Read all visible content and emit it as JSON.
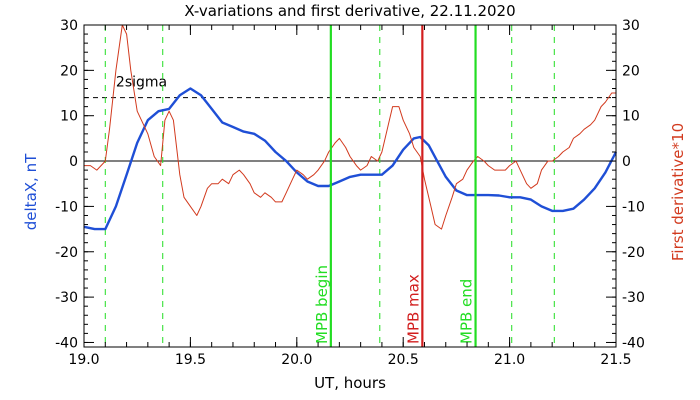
{
  "chart_data": {
    "type": "line",
    "title": "X-variations and first derivative, 22.11.2020",
    "xlabel": "UT, hours",
    "ylabel_left": "deltaX, nT",
    "ylabel_right": "First derivative*10",
    "xlim": [
      19.0,
      21.5
    ],
    "ylim": [
      -41,
      30
    ],
    "x_ticks": [
      19.0,
      19.5,
      20.0,
      20.5,
      21.0,
      21.5
    ],
    "x_tick_labels": [
      "19.0",
      "19.5",
      "20.0",
      "20.5",
      "21.0",
      "21.5"
    ],
    "y_ticks": [
      30,
      20,
      10,
      0,
      -10,
      -20,
      -30,
      -40
    ],
    "y_tick_labels": [
      "30",
      "20",
      "10",
      "0",
      "-10",
      "-20",
      "-30",
      "-40"
    ],
    "colors": {
      "deltaX": "#1f4fd6",
      "derivative": "#d23a1e",
      "mpb": "#22dd22",
      "mpb_max": "#d21e1e",
      "axes": "#000000"
    },
    "series": [
      {
        "key": "deltaX",
        "axis": "left",
        "x": [
          19.0,
          19.05,
          19.1,
          19.15,
          19.2,
          19.25,
          19.3,
          19.35,
          19.4,
          19.45,
          19.5,
          19.55,
          19.6,
          19.65,
          19.7,
          19.75,
          19.8,
          19.85,
          19.9,
          19.95,
          20.0,
          20.05,
          20.1,
          20.15,
          20.2,
          20.25,
          20.3,
          20.35,
          20.4,
          20.45,
          20.5,
          20.55,
          20.58,
          20.62,
          20.66,
          20.7,
          20.75,
          20.8,
          20.85,
          20.9,
          20.95,
          21.0,
          21.05,
          21.1,
          21.15,
          21.2,
          21.25,
          21.3,
          21.35,
          21.4,
          21.45,
          21.5
        ],
        "y": [
          -14.5,
          -15.0,
          -15.0,
          -10.0,
          -3.0,
          4.0,
          9.0,
          11.0,
          11.5,
          14.5,
          16.0,
          14.5,
          11.5,
          8.5,
          7.5,
          6.5,
          6.0,
          4.5,
          2.0,
          0.0,
          -2.5,
          -4.5,
          -5.5,
          -5.5,
          -4.5,
          -3.5,
          -3.0,
          -3.0,
          -3.0,
          -1.0,
          2.5,
          5.0,
          5.3,
          3.5,
          0.0,
          -3.5,
          -6.5,
          -7.5,
          -7.5,
          -7.5,
          -7.6,
          -8.0,
          -8.0,
          -8.5,
          -10.0,
          -11.0,
          -11.0,
          -10.5,
          -8.5,
          -6.0,
          -2.5,
          2.0
        ]
      },
      {
        "key": "derivative",
        "axis": "right",
        "x": [
          19.0,
          19.03,
          19.06,
          19.1,
          19.12,
          19.15,
          19.18,
          19.2,
          19.22,
          19.25,
          19.28,
          19.3,
          19.33,
          19.36,
          19.38,
          19.4,
          19.42,
          19.45,
          19.47,
          19.5,
          19.53,
          19.55,
          19.58,
          19.6,
          19.63,
          19.65,
          19.68,
          19.7,
          19.73,
          19.75,
          19.78,
          19.8,
          19.83,
          19.85,
          19.88,
          19.9,
          19.93,
          19.95,
          19.98,
          20.0,
          20.03,
          20.05,
          20.08,
          20.1,
          20.13,
          20.15,
          20.18,
          20.2,
          20.23,
          20.25,
          20.28,
          20.3,
          20.33,
          20.35,
          20.38,
          20.4,
          20.43,
          20.45,
          20.48,
          20.5,
          20.53,
          20.55,
          20.58,
          20.6,
          20.63,
          20.65,
          20.68,
          20.7,
          20.73,
          20.75,
          20.78,
          20.8,
          20.83,
          20.85,
          20.88,
          20.9,
          20.93,
          20.95,
          20.98,
          21.0,
          21.03,
          21.05,
          21.08,
          21.1,
          21.13,
          21.15,
          21.18,
          21.2,
          21.23,
          21.25,
          21.28,
          21.3,
          21.33,
          21.35,
          21.38,
          21.4,
          21.43,
          21.45,
          21.48,
          21.5
        ],
        "y": [
          -1.0,
          -1.0,
          -2.0,
          0.0,
          7.0,
          20.0,
          30.0,
          28.0,
          20.0,
          11.0,
          8.0,
          6.0,
          1.0,
          -1.0,
          9.0,
          11.0,
          9.0,
          -3.0,
          -8.0,
          -10.0,
          -12.0,
          -10.0,
          -6.0,
          -5.0,
          -5.0,
          -4.0,
          -5.0,
          -3.0,
          -2.0,
          -3.0,
          -5.0,
          -7.0,
          -8.0,
          -7.0,
          -8.0,
          -9.0,
          -9.0,
          -7.0,
          -4.0,
          -2.0,
          -3.0,
          -4.0,
          -3.0,
          -2.0,
          0.0,
          2.0,
          4.0,
          5.0,
          3.0,
          1.0,
          -1.0,
          -2.0,
          -1.0,
          1.0,
          0.0,
          2.0,
          8.0,
          12.0,
          12.0,
          9.0,
          6.0,
          3.0,
          1.0,
          -4.0,
          -10.0,
          -14.0,
          -15.0,
          -12.0,
          -8.0,
          -5.0,
          -4.0,
          -2.0,
          0.0,
          1.0,
          0.0,
          -1.0,
          -2.0,
          -2.0,
          -2.0,
          -1.0,
          0.0,
          -2.0,
          -5.0,
          -6.0,
          -5.0,
          -2.0,
          0.0,
          0.0,
          1.0,
          2.0,
          3.0,
          5.0,
          6.0,
          7.0,
          8.0,
          9.0,
          12.0,
          13.0,
          15.0,
          15.0
        ]
      }
    ],
    "reference_lines": {
      "zero_y": 0,
      "sigma_y": 14,
      "sigma_label": "2sigma"
    },
    "vertical_lines": {
      "dashed_x": [
        19.1,
        19.37,
        20.39,
        21.01,
        21.21
      ],
      "markers": [
        {
          "x": 20.16,
          "label": "MPB begin",
          "color_key": "mpb"
        },
        {
          "x": 20.59,
          "label": "MPB max",
          "color_key": "mpb_max"
        },
        {
          "x": 20.84,
          "label": "MPB end",
          "color_key": "mpb"
        }
      ]
    }
  }
}
